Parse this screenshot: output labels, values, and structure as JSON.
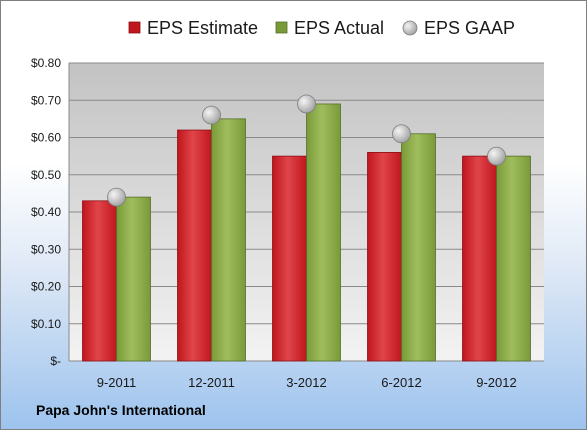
{
  "footer": {
    "company": "Papa John's International"
  },
  "colors": {
    "estimate": "#c0161d",
    "actual": "#7a9a3a",
    "gaap": "#a7a7a7",
    "plot_top": "#c3c3c3",
    "plot_bottom": "#f3f3f3"
  },
  "icons": {
    "gaap_marker": "gray-sphere-icon"
  },
  "chart_data": {
    "type": "bar",
    "categories": [
      "9-2011",
      "12-2011",
      "3-2012",
      "6-2012",
      "9-2012"
    ],
    "series": [
      {
        "name": "EPS Estimate",
        "values": [
          0.43,
          0.62,
          0.55,
          0.56,
          0.55
        ]
      },
      {
        "name": "EPS Actual",
        "values": [
          0.44,
          0.65,
          0.69,
          0.61,
          0.55
        ]
      },
      {
        "name": "EPS GAAP",
        "values": [
          0.44,
          0.66,
          0.69,
          0.61,
          0.55
        ],
        "render": "marker"
      }
    ],
    "ylim": [
      0,
      0.8
    ],
    "yticks": [
      "$-",
      "$0.10",
      "$0.20",
      "$0.30",
      "$0.40",
      "$0.50",
      "$0.60",
      "$0.70",
      "$0.80"
    ],
    "legend_position": "top",
    "grid": true
  }
}
